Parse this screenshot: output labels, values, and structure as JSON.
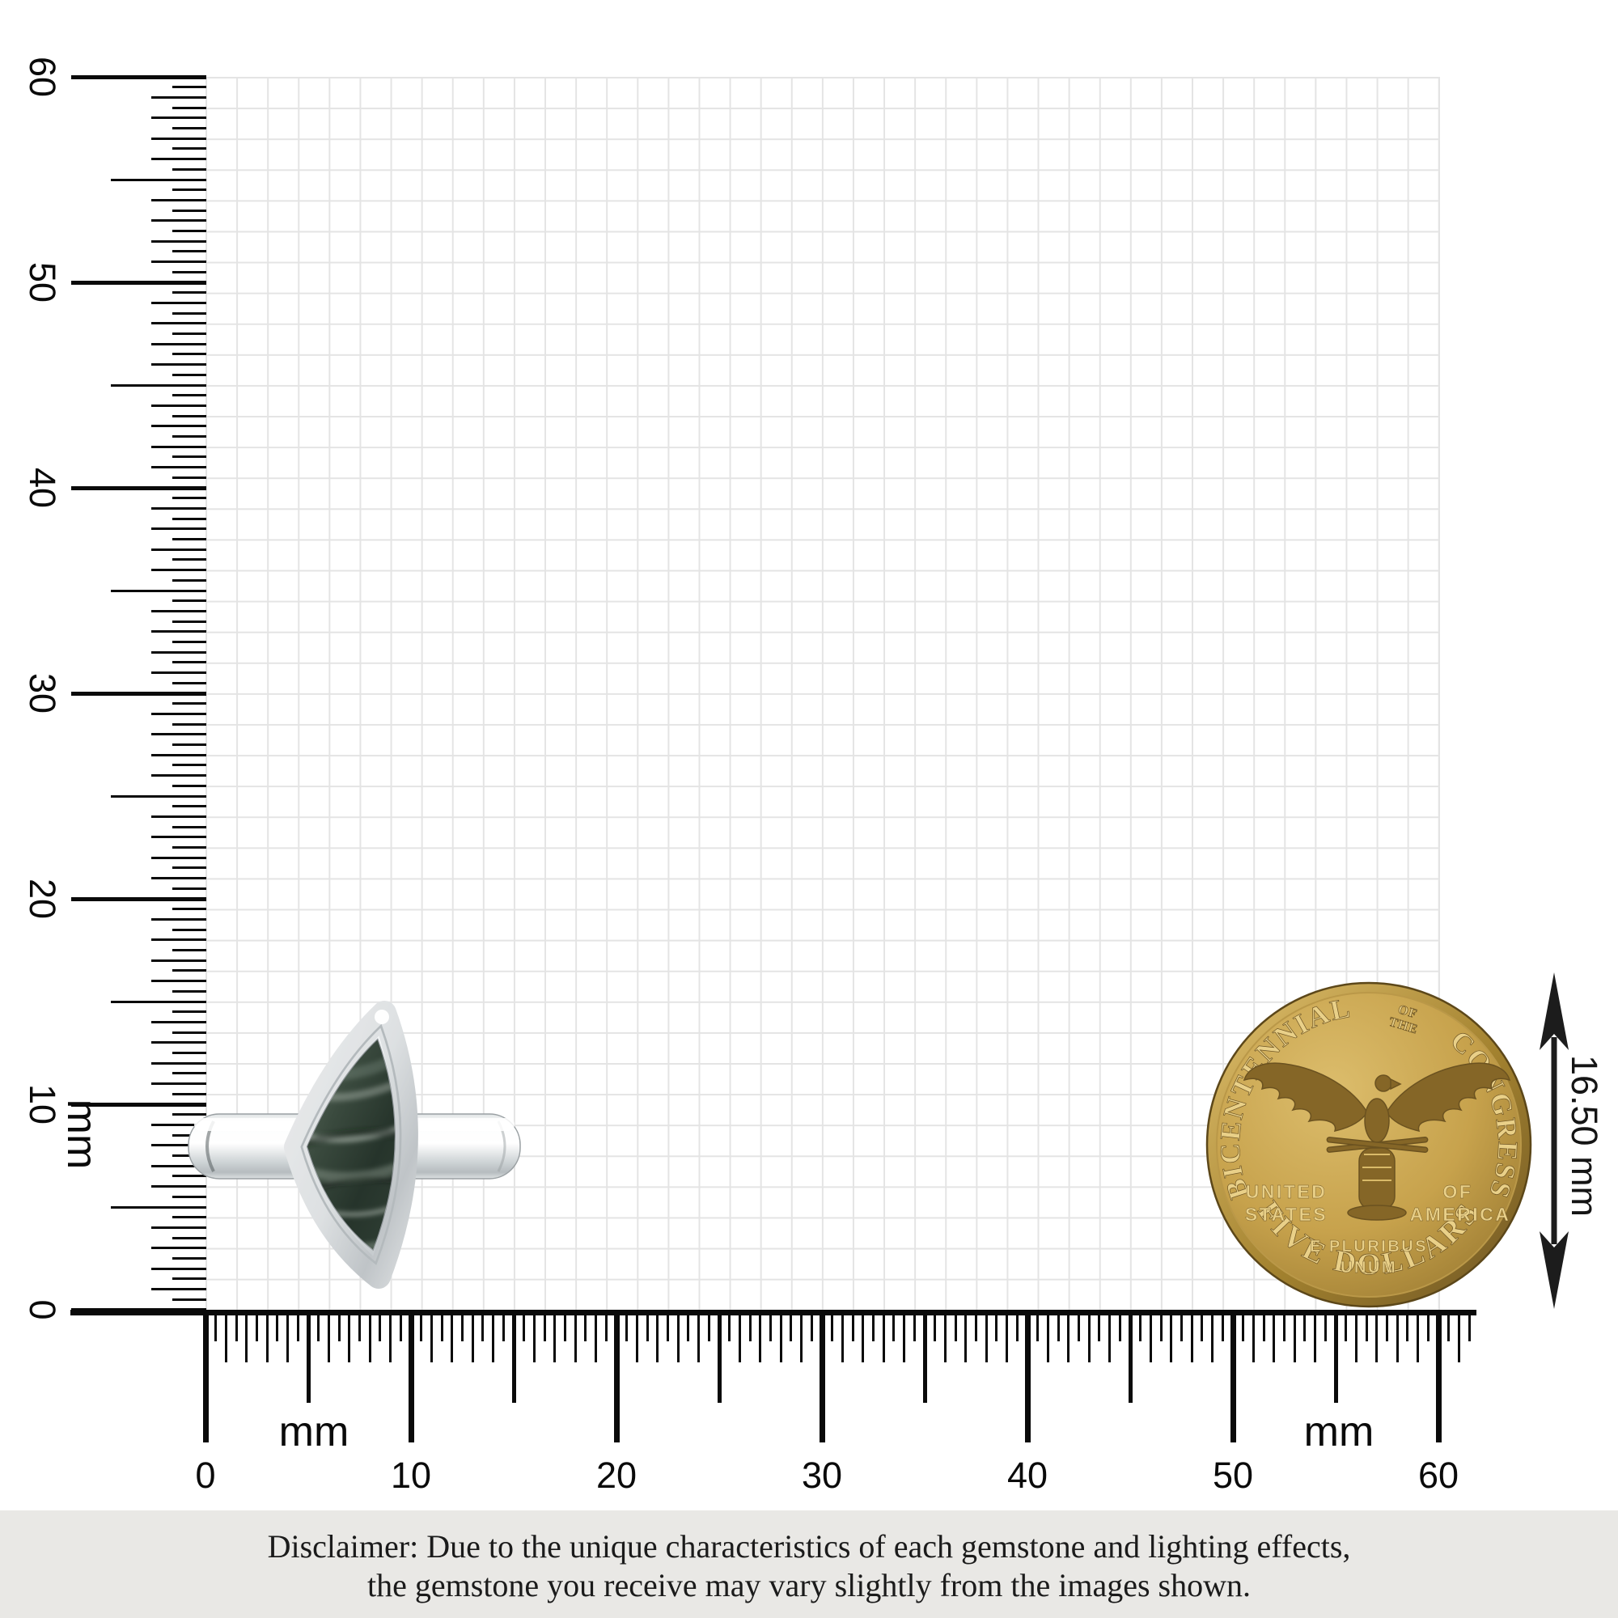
{
  "rulers": {
    "unit_label": "mm",
    "left": {
      "labels": [
        "0",
        "10",
        "20",
        "30",
        "40",
        "50",
        "60"
      ]
    },
    "bottom": {
      "labels": [
        "0",
        "10",
        "20",
        "30",
        "40",
        "50",
        "60"
      ]
    }
  },
  "measurement": {
    "value": "16.50 mm"
  },
  "coin": {
    "top_arc_left": "BICENTENNIAL",
    "top_small_line1": "OF",
    "top_small_line2": "THE",
    "top_arc_right": "CONGRESS",
    "left_line1": "UNITED",
    "left_line2": "STATES",
    "right_line1": "OF",
    "right_line2": "AMERICA",
    "motto_line1": "E PLURIBUS",
    "motto_line2": "UNUM",
    "bottom_arc": "FIVE DOLLARS"
  },
  "disclaimer": {
    "line1": "Disclaimer: Due to the unique characteristics of each gemstone and lighting effects,",
    "line2": "the gemstone you receive may vary slightly from the images shown."
  },
  "colors": {
    "tick": "#0a0a0a",
    "grid_line": "#e4e4e4",
    "disclaimer_bg": "#e9e8e5",
    "gold": "#c7a24c",
    "gold_light": "#e9d088",
    "gold_dark": "#7a5c24",
    "silver": "#e8ebec",
    "silver_shadow": "#b9bfc2",
    "stone_dark": "#26342b",
    "stone_light": "#cfd9cf"
  }
}
